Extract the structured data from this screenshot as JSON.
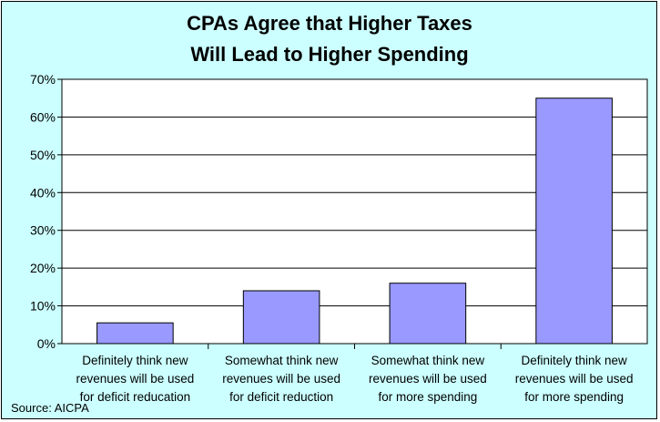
{
  "chart_data": {
    "type": "bar",
    "title": [
      "CPAs Agree that Higher Taxes",
      "Will Lead to Higher Spending"
    ],
    "categories": [
      [
        "Definitely think new",
        "revenues will be used",
        "for deficit reducation"
      ],
      [
        "Somewhat think new",
        "revenues will be used",
        "for deficit reduction"
      ],
      [
        "Somewhat think new",
        "revenues will be used",
        "for more spending"
      ],
      [
        "Definitely think new",
        "revenues will be used",
        "for more spending"
      ]
    ],
    "values": [
      5.5,
      14,
      16,
      65
    ],
    "yticks": [
      "0%",
      "10%",
      "20%",
      "30%",
      "40%",
      "50%",
      "60%",
      "70%"
    ],
    "ylim": [
      0,
      70
    ],
    "grid": true,
    "legend": "none",
    "source": "Source: AICPA",
    "colors": {
      "background": "#ccffff",
      "plot": "#ffffff",
      "bar": "#9999ff",
      "bar_border": "#000000",
      "grid": "#000000"
    }
  }
}
